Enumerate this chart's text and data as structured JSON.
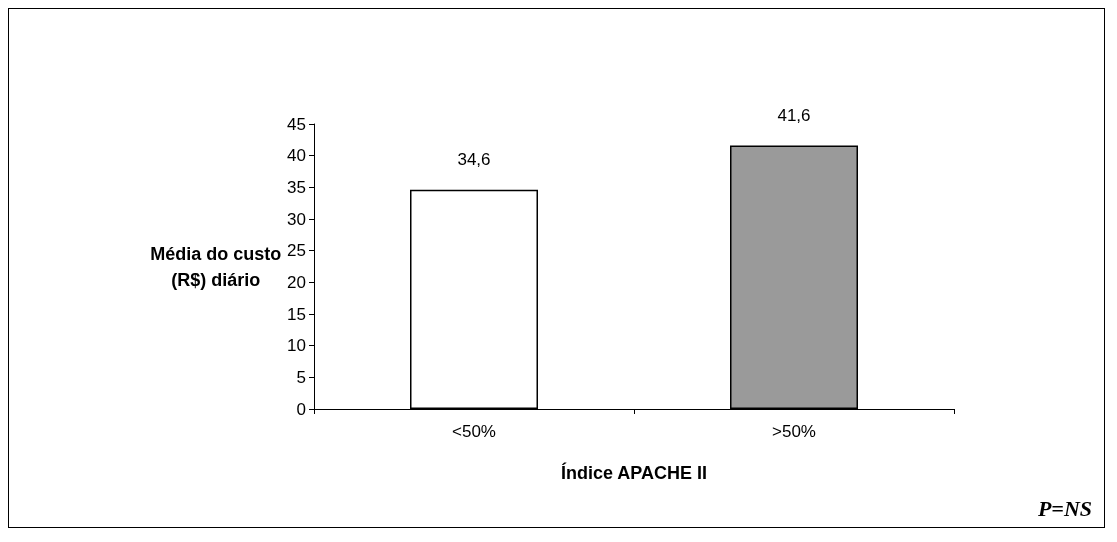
{
  "chart_data": {
    "type": "bar",
    "categories": [
      "<50%",
      ">50%"
    ],
    "values": [
      34.6,
      41.6
    ],
    "value_labels": [
      "34,6",
      "41,6"
    ],
    "colors": [
      "#ffffff",
      "#9a9a9a"
    ],
    "ylabel": "Média do custo (R$) diário",
    "xlabel": "Índice APACHE II",
    "annotations": [
      "P=NS"
    ],
    "ylim": [
      0,
      45
    ],
    "yticks": [
      0,
      5,
      10,
      15,
      20,
      25,
      30,
      35,
      40,
      45
    ],
    "grid": false
  }
}
